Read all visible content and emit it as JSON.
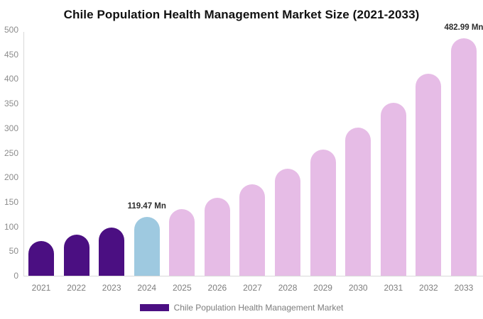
{
  "title": "Chile Population Health Management Market Size (2021-2033)",
  "legend": {
    "label": "Chile Population Health Management Market",
    "swatch_color": "#4B0F82"
  },
  "colors": {
    "historical_bar": "#4B0F82",
    "base_year_bar": "#9EC9E0",
    "forecast_bar": "#E6BCE6",
    "axis_line": "#d9d9d9",
    "tick_text": "#8c8c8c",
    "data_label_text": "#2d2d2d"
  },
  "chart_data": {
    "type": "bar",
    "title": "Chile Population Health Management Market Size (2021-2033)",
    "xlabel": "",
    "ylabel": "",
    "categories": [
      "2021",
      "2022",
      "2023",
      "2024",
      "2025",
      "2026",
      "2027",
      "2028",
      "2029",
      "2030",
      "2031",
      "2032",
      "2033"
    ],
    "values": [
      70,
      84,
      98,
      119.47,
      136,
      159,
      186,
      218,
      257,
      301,
      351,
      410,
      482.99
    ],
    "bar_colors": [
      "#4B0F82",
      "#4B0F82",
      "#4B0F82",
      "#9EC9E0",
      "#E6BCE6",
      "#E6BCE6",
      "#E6BCE6",
      "#E6BCE6",
      "#E6BCE6",
      "#E6BCE6",
      "#E6BCE6",
      "#E6BCE6",
      "#E6BCE6"
    ],
    "ylim": [
      0,
      500
    ],
    "yticks": [
      0,
      50,
      100,
      150,
      200,
      250,
      300,
      350,
      400,
      450,
      500
    ],
    "grid": false,
    "legend_position": "bottom",
    "value_labels": [
      {
        "category": "2024",
        "text": "119.47 Mn"
      },
      {
        "category": "2033",
        "text": "482.99 Mn"
      }
    ]
  }
}
